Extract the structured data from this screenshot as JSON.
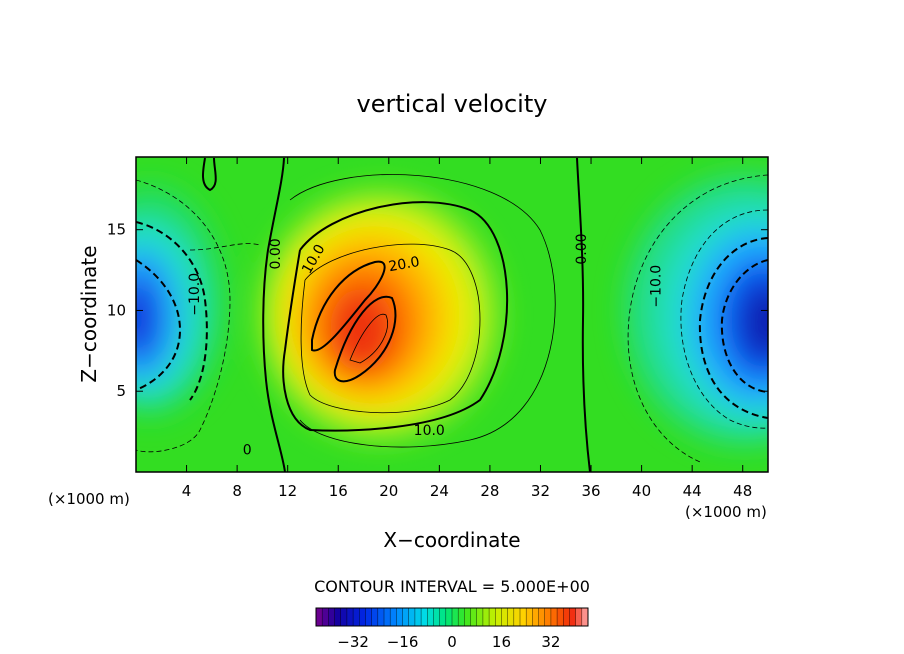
{
  "chart_data": {
    "type": "heatmap",
    "title": "vertical velocity",
    "xlabel": "X−coordinate",
    "ylabel": "Z−coordinate",
    "x_unit_left": "(×1000 m)",
    "x_unit_right": "(×1000 m)",
    "xlim": [
      0,
      50
    ],
    "ylim": [
      0,
      19.5
    ],
    "xticks": [
      4,
      8,
      12,
      16,
      20,
      24,
      28,
      32,
      36,
      40,
      44,
      48
    ],
    "yticks": [
      5,
      10,
      15
    ],
    "contour_interval_text": "CONTOUR INTERVAL = 5.000E+00",
    "contour_labels": [
      {
        "text": "0.00",
        "x": 11,
        "y": 13.5
      },
      {
        "text": "10.0",
        "x": 14,
        "y": 13.2
      },
      {
        "text": "20.0",
        "x": 21.2,
        "y": 12.9
      },
      {
        "text": "10.0",
        "x": 23.2,
        "y": 2.6
      },
      {
        "text": "0.00",
        "x": 35.2,
        "y": 13.8
      },
      {
        "text": "−10.0",
        "x": 41.1,
        "y": 11.5
      },
      {
        "text": "−10.0",
        "x": 4.6,
        "y": 11.0
      },
      {
        "text": "0",
        "x": 8.8,
        "y": 1.4
      }
    ],
    "field_features": [
      {
        "kind": "updraft",
        "x": 18.5,
        "y": 9,
        "value": 36
      },
      {
        "kind": "downdraft",
        "x": 49.5,
        "y": 9,
        "value": -36
      },
      {
        "kind": "downdraft",
        "x": 0.5,
        "y": 9.5,
        "value": -32
      }
    ],
    "colorbar": {
      "min": -44,
      "max": 44,
      "ticks": [
        "−32",
        "−16",
        "0",
        "16",
        "32"
      ],
      "tick_values": [
        -32,
        -16,
        0,
        16,
        32
      ]
    }
  }
}
